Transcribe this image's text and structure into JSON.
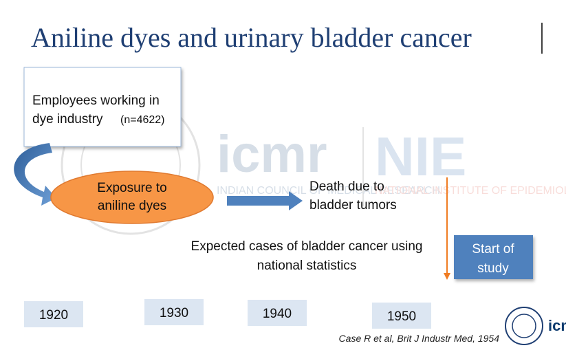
{
  "title": "Aniline dyes and urinary bladder cancer",
  "employees": {
    "line1": "Employees working in",
    "line2": "dye industry",
    "count": "(n=4622)"
  },
  "exposure": {
    "line1": "Exposure to",
    "line2": "aniline dyes"
  },
  "outcome": {
    "line1": "Death due to",
    "line2": "bladder tumors"
  },
  "expected": {
    "line1": "Expected cases of bladder cancer using",
    "line2": "national statistics"
  },
  "study_start": {
    "line1": "Start of",
    "line2": "study"
  },
  "timeline": [
    "1920",
    "1930",
    "1940",
    "1950"
  ],
  "citation": "Case R et al, Brit J Industr Med, 1954",
  "watermark": {
    "logo1": "icmr",
    "logo2": "NIE",
    "org1": "INDIAN COUNCIL OF MEDICAL RESEARCH",
    "org2": "NATIONAL INSTITUTE OF EPIDEMIOLOGY"
  }
}
